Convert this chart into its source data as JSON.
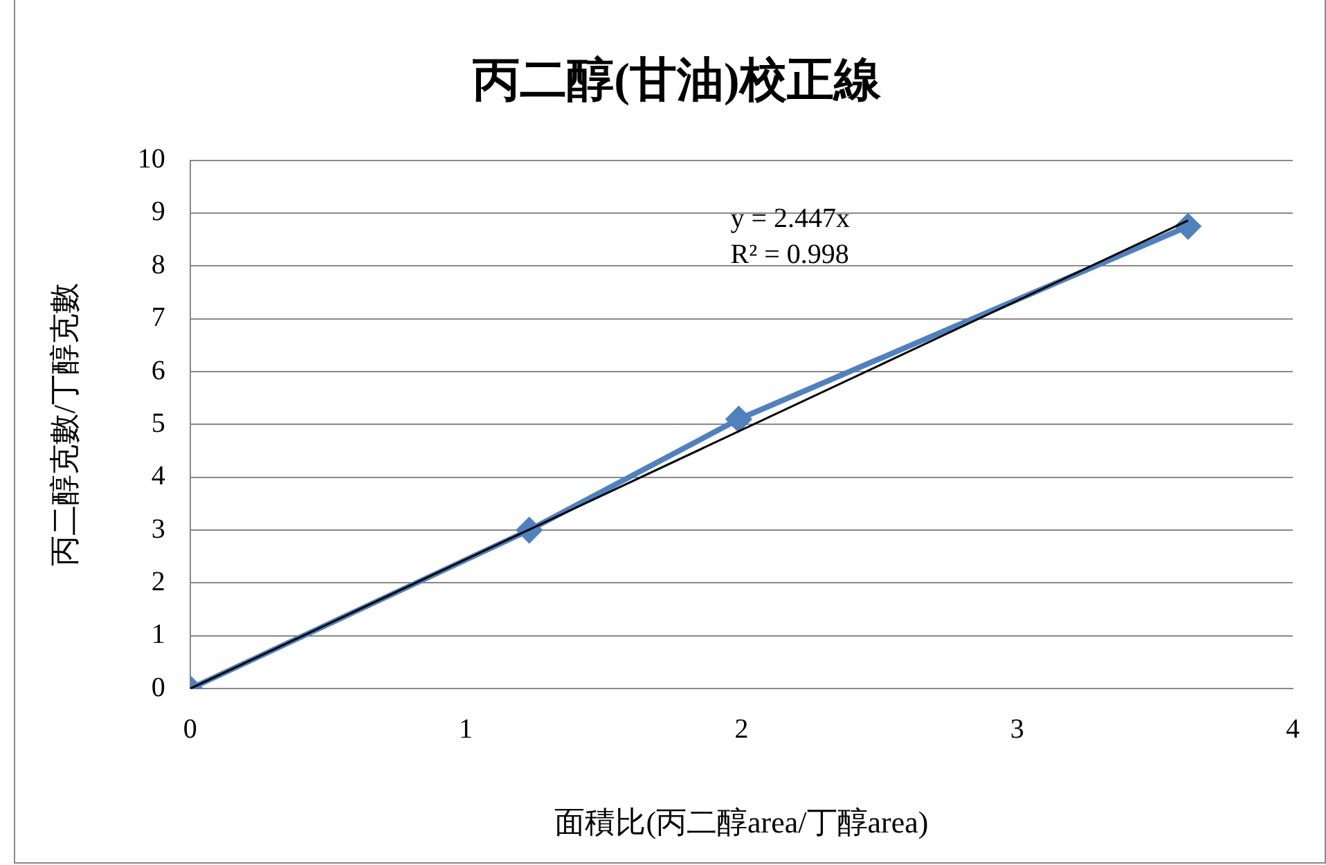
{
  "chart_data": {
    "type": "scatter",
    "title": "丙二醇(甘油)校正線",
    "xlabel": "面積比(丙二醇area/丁醇area)",
    "ylabel": "丙二醇克數/丁醇克數",
    "xlim": [
      0,
      4
    ],
    "xticks": [
      0,
      1,
      2,
      3,
      4
    ],
    "ylim": [
      0,
      10
    ],
    "yticks": [
      0,
      1,
      2,
      3,
      4,
      5,
      6,
      7,
      8,
      9,
      10
    ],
    "grid": "y",
    "legend": false,
    "series": [
      {
        "type": "line",
        "color": "#4f81bd",
        "marker": "diamond",
        "x": [
          0,
          1.23,
          1.99,
          3.62
        ],
        "values": [
          0,
          3,
          5.1,
          8.75
        ]
      },
      {
        "type": "line",
        "color": "#000000",
        "marker": "none",
        "x": [
          0,
          3.62
        ],
        "values": [
          0,
          8.86
        ]
      }
    ],
    "annotations": [
      "y = 2.447x",
      "R² = 0.998"
    ]
  }
}
